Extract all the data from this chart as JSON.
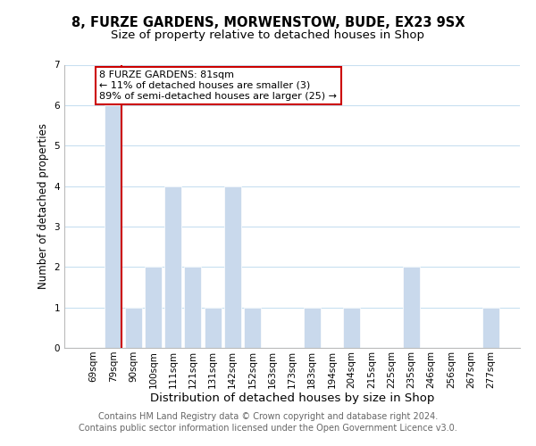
{
  "title": "8, FURZE GARDENS, MORWENSTOW, BUDE, EX23 9SX",
  "subtitle": "Size of property relative to detached houses in Shop",
  "xlabel": "Distribution of detached houses by size in Shop",
  "ylabel": "Number of detached properties",
  "categories": [
    "69sqm",
    "79sqm",
    "90sqm",
    "100sqm",
    "111sqm",
    "121sqm",
    "131sqm",
    "142sqm",
    "152sqm",
    "163sqm",
    "173sqm",
    "183sqm",
    "194sqm",
    "204sqm",
    "215sqm",
    "225sqm",
    "235sqm",
    "246sqm",
    "256sqm",
    "267sqm",
    "277sqm"
  ],
  "values": [
    0,
    6,
    1,
    2,
    4,
    2,
    1,
    4,
    1,
    0,
    0,
    1,
    0,
    1,
    0,
    0,
    2,
    0,
    0,
    0,
    1
  ],
  "bar_color": "#c9d9ec",
  "highlight_bar_index": 1,
  "annotation_title": "8 FURZE GARDENS: 81sqm",
  "annotation_line1": "← 11% of detached houses are smaller (3)",
  "annotation_line2": "89% of semi-detached houses are larger (25) →",
  "annotation_box_color": "#ffffff",
  "annotation_box_edge": "#cc0000",
  "highlight_line_color": "#cc0000",
  "ylim": [
    0,
    7
  ],
  "yticks": [
    0,
    1,
    2,
    3,
    4,
    5,
    6,
    7
  ],
  "footer1": "Contains HM Land Registry data © Crown copyright and database right 2024.",
  "footer2": "Contains public sector information licensed under the Open Government Licence v3.0.",
  "title_fontsize": 10.5,
  "subtitle_fontsize": 9.5,
  "xlabel_fontsize": 9.5,
  "ylabel_fontsize": 8.5,
  "tick_fontsize": 7.5,
  "footer_fontsize": 7.0,
  "annotation_fontsize": 8.0
}
